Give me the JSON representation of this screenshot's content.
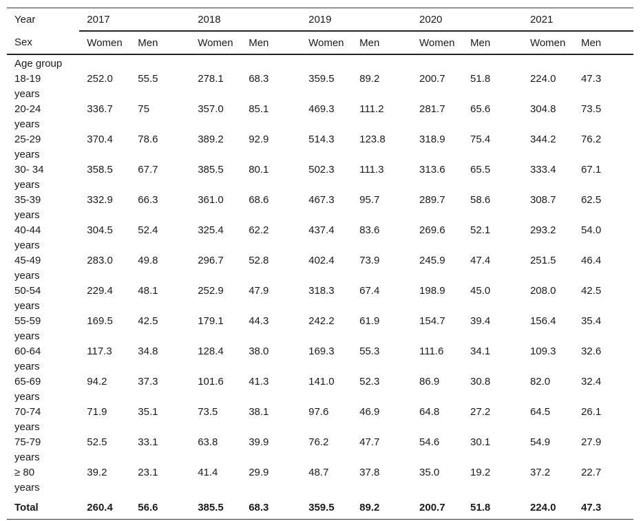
{
  "header": {
    "year_label": "Year",
    "sex_label": "Sex",
    "years": [
      "2017",
      "2018",
      "2019",
      "2020",
      "2021"
    ],
    "women_label": "Women",
    "men_label": "Men",
    "age_group_label": "Age group"
  },
  "rows": [
    {
      "label": "18-19 years",
      "values": [
        "252.0",
        "55.5",
        "278.1",
        "68.3",
        "359.5",
        "89.2",
        "200.7",
        "51.8",
        "224.0",
        "47.3"
      ]
    },
    {
      "label": "20-24 years",
      "values": [
        "336.7",
        "75",
        "357.0",
        "85.1",
        "469.3",
        "111.2",
        "281.7",
        "65.6",
        "304.8",
        "73.5"
      ]
    },
    {
      "label": "25-29 years",
      "values": [
        "370.4",
        "78.6",
        "389.2",
        "92.9",
        "514.3",
        "123.8",
        "318.9",
        "75.4",
        "344.2",
        "76.2"
      ]
    },
    {
      "label": "30- 34 years",
      "values": [
        "358.5",
        "67.7",
        "385.5",
        "80.1",
        "502.3",
        "111.3",
        "313.6",
        "65.5",
        "333.4",
        "67.1"
      ]
    },
    {
      "label": "35-39 years",
      "values": [
        "332.9",
        "66.3",
        "361.0",
        "68.6",
        "467.3",
        "95.7",
        "289.7",
        "58.6",
        "308.7",
        "62.5"
      ]
    },
    {
      "label": "40-44 years",
      "values": [
        "304.5",
        "52.4",
        "325.4",
        "62.2",
        "437.4",
        "83.6",
        "269.6",
        "52.1",
        "293.2",
        "54.0"
      ]
    },
    {
      "label": "45-49 years",
      "values": [
        "283.0",
        "49.8",
        "296.7",
        "52.8",
        "402.4",
        "73.9",
        "245.9",
        "47.4",
        "251.5",
        "46.4"
      ]
    },
    {
      "label": "50-54 years",
      "values": [
        "229.4",
        "48.1",
        "252.9",
        "47.9",
        "318.3",
        "67.4",
        "198.9",
        "45.0",
        "208.0",
        "42.5"
      ]
    },
    {
      "label": "55-59 years",
      "values": [
        "169.5",
        "42.5",
        "179.1",
        "44.3",
        "242.2",
        "61.9",
        "154.7",
        "39.4",
        "156.4",
        "35.4"
      ]
    },
    {
      "label": "60-64 years",
      "values": [
        "117.3",
        "34.8",
        "128.4",
        "38.0",
        "169.3",
        "55.3",
        "111.6",
        "34.1",
        "109.3",
        "32.6"
      ]
    },
    {
      "label": "65-69 years",
      "values": [
        "94.2",
        "37.3",
        "101.6",
        "41.3",
        "141.0",
        "52.3",
        "86.9",
        "30.8",
        "82.0",
        "32.4"
      ]
    },
    {
      "label": "70-74 years",
      "values": [
        "71.9",
        "35.1",
        "73.5",
        "38.1",
        "97.6",
        "46.9",
        "64.8",
        "27.2",
        "64.5",
        "26.1"
      ]
    },
    {
      "label": "75-79 years",
      "values": [
        "52.5",
        "33.1",
        "63.8",
        "39.9",
        "76.2",
        "47.7",
        "54.6",
        "30.1",
        "54.9",
        "27.9"
      ]
    },
    {
      "label": "≥ 80 years",
      "values": [
        "39.2",
        "23.1",
        "41.4",
        "29.9",
        "48.7",
        "37.8",
        "35.0",
        "19.2",
        "37.2",
        "22.7"
      ]
    }
  ],
  "total": {
    "label": "Total",
    "values": [
      "260.4",
      "56.6",
      "385.5",
      "68.3",
      "359.5",
      "89.2",
      "200.7",
      "51.8",
      "224.0",
      "47.3"
    ]
  }
}
